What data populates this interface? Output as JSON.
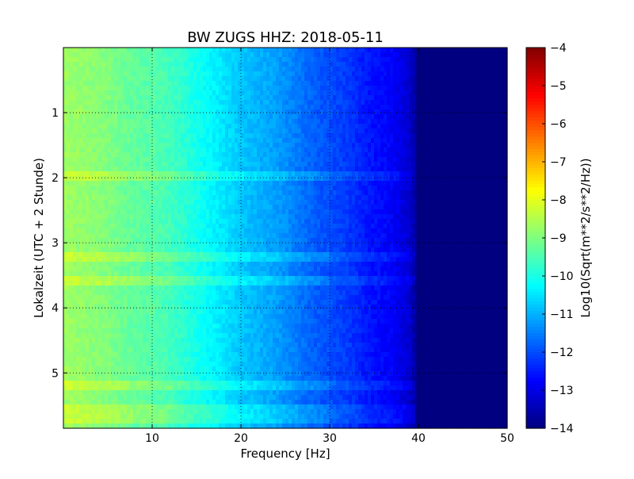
{
  "chart_data": {
    "type": "heatmap",
    "title": "BW ZUGS HHZ: 2018-05-11",
    "xlabel": "Frequency [Hz]",
    "ylabel": "Lokalzeit (UTC + 2 Stunde)",
    "xlim": [
      0,
      50
    ],
    "ylim": [
      0,
      5.85
    ],
    "y_inverted": true,
    "x_ticks": [
      "10",
      "20",
      "30",
      "40",
      "50"
    ],
    "x_tick_values": [
      10,
      20,
      30,
      40,
      50
    ],
    "y_ticks": [
      "1",
      "2",
      "3",
      "4",
      "5"
    ],
    "y_tick_values": [
      1,
      2,
      3,
      4,
      5
    ],
    "grid": true,
    "colormap": "jet",
    "colorbar": {
      "label": "Log10(Sqrt(m**2/s**2/Hz))",
      "min": -14,
      "max": -4,
      "ticks": [
        "−14",
        "−13",
        "−12",
        "−11",
        "−10",
        "−9",
        "−8",
        "−7",
        "−6",
        "−5",
        "−4"
      ],
      "tick_values": [
        -14,
        -13,
        -12,
        -11,
        -10,
        -9,
        -8,
        -7,
        -6,
        -5,
        -4
      ]
    },
    "spectrum_profile": {
      "frequency_hz": [
        0,
        2,
        5,
        8,
        10,
        12,
        14,
        16,
        18,
        20,
        22,
        24,
        26,
        28,
        30,
        32,
        34,
        36,
        37,
        38,
        39,
        39.5,
        40,
        45,
        50
      ],
      "log_psd": [
        -8.7,
        -8.8,
        -9.0,
        -9.3,
        -9.4,
        -9.6,
        -9.9,
        -10.2,
        -10.5,
        -10.8,
        -11.0,
        -11.2,
        -11.5,
        -11.8,
        -12.0,
        -12.2,
        -12.5,
        -12.7,
        -12.8,
        -13.0,
        -13.2,
        -13.6,
        -14.0,
        -14.0,
        -14.0
      ]
    },
    "event_rows_hours": [
      1.97,
      3.2,
      3.58,
      5.18,
      5.55,
      5.7
    ]
  }
}
